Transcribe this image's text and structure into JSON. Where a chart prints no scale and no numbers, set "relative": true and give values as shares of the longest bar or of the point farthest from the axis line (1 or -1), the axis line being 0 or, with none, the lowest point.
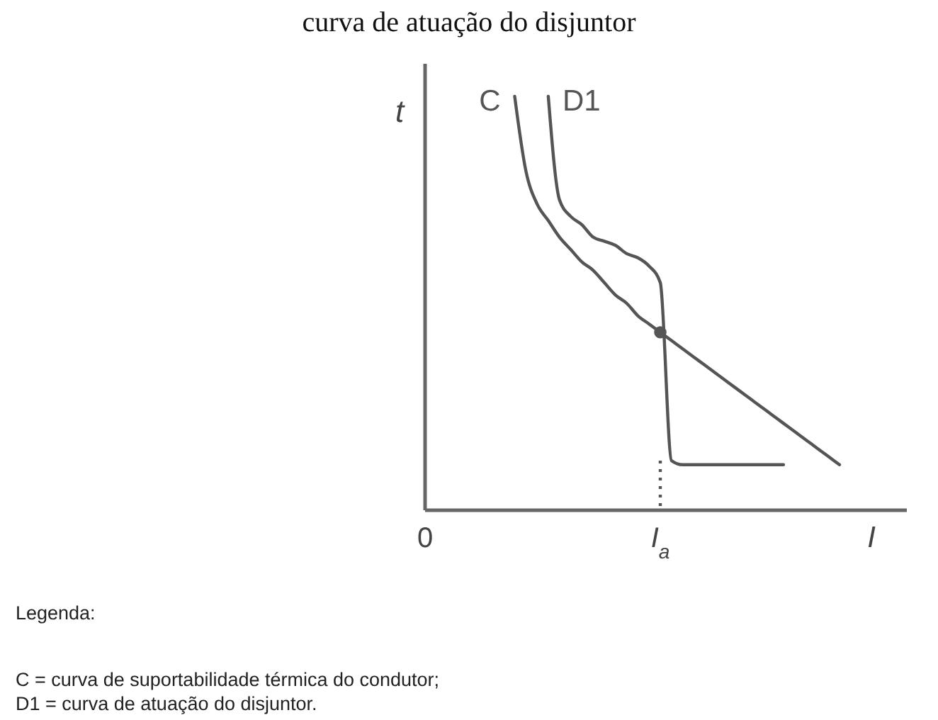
{
  "chart_data": {
    "type": "line",
    "title": "curva de atuação do disjuntor",
    "xlabel": "I",
    "ylabel": "t",
    "relative": true,
    "line_style": "solid",
    "categories": [
      "0",
      null,
      null,
      null,
      null,
      null,
      null,
      null,
      null,
      null,
      null,
      null,
      null,
      null,
      null,
      null,
      null,
      null,
      null,
      null,
      null,
      "I$_{a}$",
      null,
      null,
      null,
      null,
      null,
      null,
      null,
      null,
      null,
      null,
      null,
      null,
      null,
      null,
      null,
      null,
      null,
      null,
      null,
      null,
      null
    ],
    "series": [
      {
        "name": "C",
        "color": "#555555",
        "values": [
          null,
          null,
          null,
          null,
          null,
          null,
          null,
          null,
          1.0,
          0.82,
          0.74,
          0.7,
          0.66,
          0.63,
          0.6,
          0.58,
          0.55,
          0.52,
          0.5,
          0.47,
          0.45,
          0.43,
          0.41,
          0.39,
          0.37,
          0.35,
          0.33,
          0.31,
          0.29,
          0.27,
          0.25,
          0.23,
          0.21,
          0.19,
          0.17,
          0.15,
          0.13,
          0.11,
          null,
          null,
          null,
          null,
          null
        ]
      },
      {
        "name": "D1",
        "color": "#555555",
        "values": [
          null,
          null,
          null,
          null,
          null,
          null,
          null,
          null,
          null,
          null,
          null,
          1.0,
          0.75,
          0.71,
          0.69,
          0.66,
          0.65,
          0.64,
          0.62,
          0.61,
          0.59,
          0.55,
          0.12,
          0.11,
          0.11,
          0.11,
          0.11,
          0.11,
          0.11,
          0.11,
          0.11,
          0.11,
          0.11,
          null,
          null,
          null,
          null,
          null,
          null,
          null,
          null,
          null,
          null
        ]
      },
      {
        "type": "line",
        "line_style": "dotted",
        "color": "#555555",
        "x": [
          "I$_{a}$",
          "I$_{a}$"
        ],
        "values": [
          0.12,
          0
        ]
      },
      {
        "type": "scatter",
        "marker": "circle",
        "color": "#555555",
        "x": [
          "I$_{a}$"
        ],
        "values": [
          0.43
        ]
      }
    ],
    "annotations": [
      "Legenda:",
      "C = curva de suportabilidade térmica do condutor;",
      "D1 = curva de atuação do disjuntor."
    ]
  }
}
